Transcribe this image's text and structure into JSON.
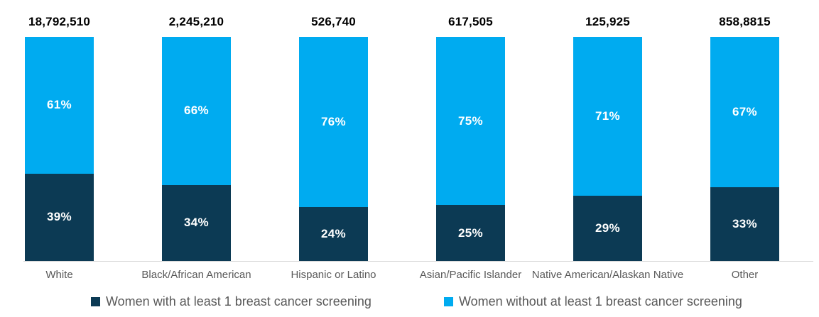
{
  "chart_data": {
    "type": "bar",
    "subtype": "stacked-100-percent",
    "title": "",
    "xlabel": "",
    "ylabel": "",
    "ylim": [
      0,
      100
    ],
    "grid": false,
    "legend_position": "bottom",
    "axis_line_color": "#d9d9d9",
    "categories": [
      "White",
      "Black/African American",
      "Hispanic or Latino",
      "Asian/Pacific Islander",
      "Native American/Alaskan Native",
      "Other"
    ],
    "totals": [
      "18,792,510",
      "2,245,210",
      "526,740",
      "617,505",
      "125,925",
      "858,8815"
    ],
    "series": [
      {
        "name": "Women with at least 1 breast cancer screening",
        "color": "#0c3a54",
        "values": [
          39,
          34,
          24,
          25,
          29,
          33
        ],
        "labels": [
          "39%",
          "34%",
          "24%",
          "25%",
          "29%",
          "33%"
        ]
      },
      {
        "name": "Women without at least 1 breast cancer screening",
        "color": "#00abf0",
        "values": [
          61,
          66,
          76,
          75,
          71,
          67
        ],
        "labels": [
          "61%",
          "66%",
          "76%",
          "75%",
          "71%",
          "67%"
        ]
      }
    ]
  },
  "colors": {
    "with_screening": "#0c3a54",
    "without_screening": "#00abf0",
    "total_label": "#000000",
    "category_label": "#595959",
    "legend_text": "#595959",
    "axis_line": "#d9d9d9",
    "segment_label": "#ffffff"
  }
}
